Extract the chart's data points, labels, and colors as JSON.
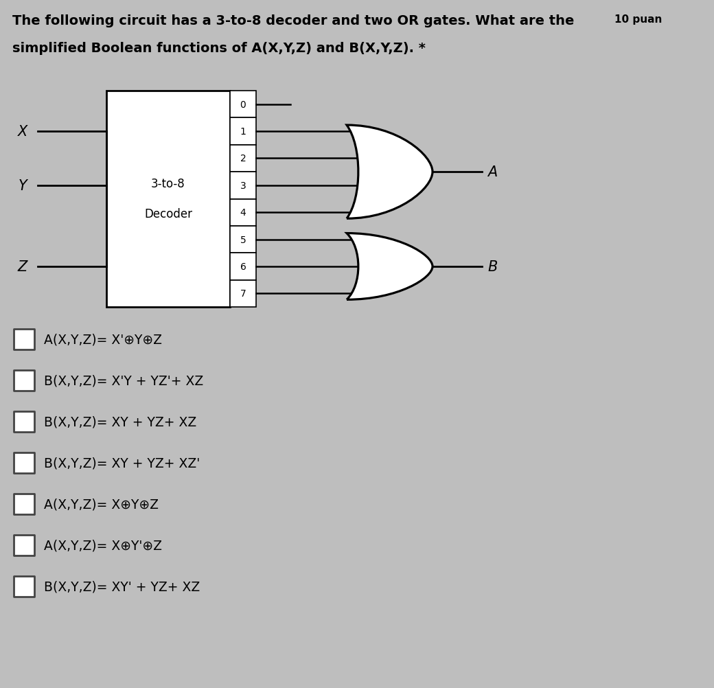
{
  "title_line1": "The following circuit has a 3-to-8 decoder and two OR gates. What are the",
  "title_points": "10 puan",
  "title_line2": "simplified Boolean functions of A(X,Y,Z) and B(X,Y,Z). *",
  "bg_color": "#bebebe",
  "decoder_label1": "3-to-8",
  "decoder_label2": "Decoder",
  "inputs": [
    "X",
    "Y",
    "Z"
  ],
  "gate_A_label": "A",
  "gate_B_label": "B",
  "or_gate_A_inputs": [
    1,
    2,
    3,
    4
  ],
  "or_gate_B_inputs": [
    5,
    6,
    7
  ],
  "choices": [
    "A(X,Y,Z)= X'⊕Y⊕Z",
    "B(X,Y,Z)= X'Y + YZ'+ XZ",
    "B(X,Y,Z)= XY + YZ+ XZ",
    "B(X,Y,Z)= XY + YZ+ XZ'",
    "A(X,Y,Z)= X⊕Y⊕Z",
    "A(X,Y,Z)= X⊕Y'⊕Z",
    "B(X,Y,Z)= XY' + YZ+ XZ"
  ],
  "n_outputs": 8
}
